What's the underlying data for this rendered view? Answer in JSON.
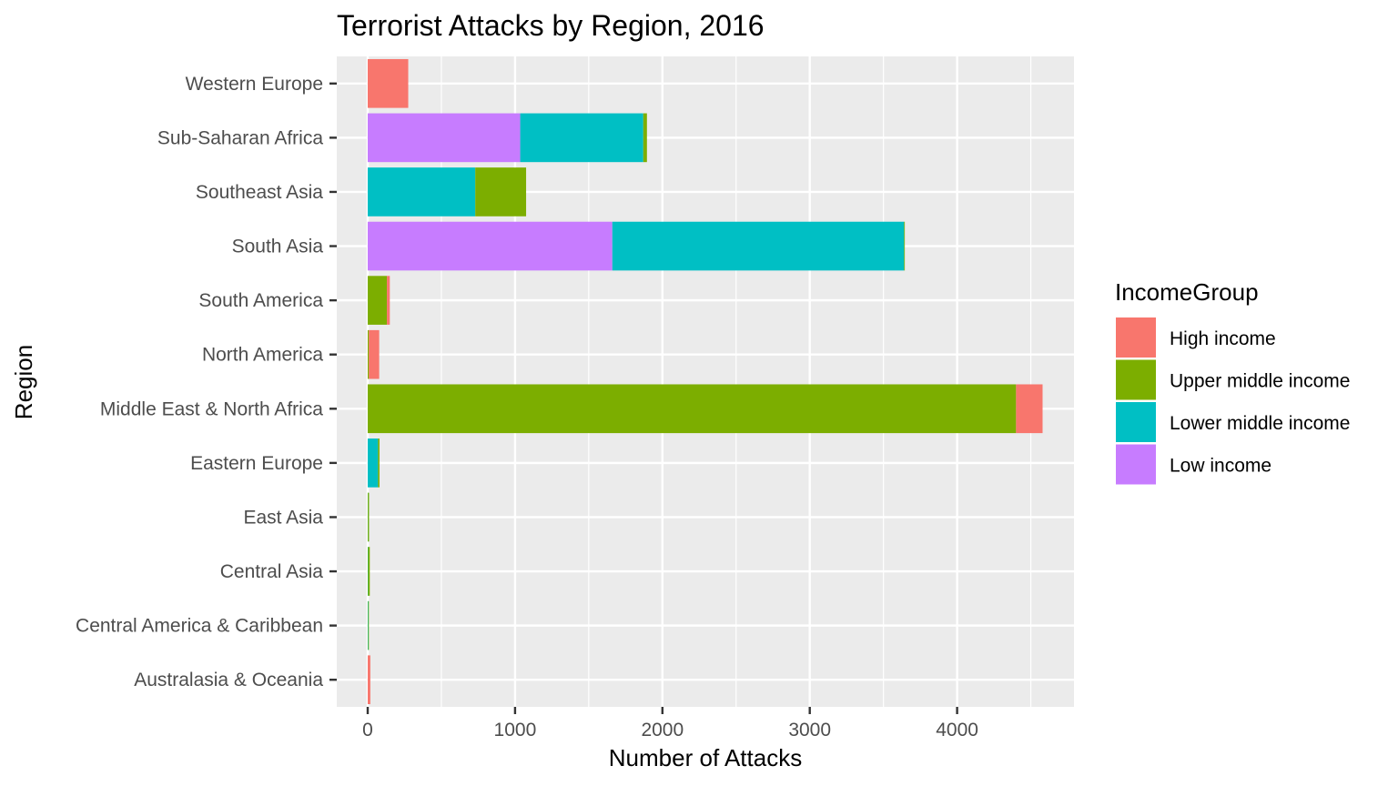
{
  "chart_data": {
    "type": "bar",
    "orientation": "horizontal",
    "stacked": true,
    "title": "Terrorist Attacks by Region, 2016",
    "xlabel": "Number of Attacks",
    "ylabel": "Region",
    "xlim": [
      -200,
      4800
    ],
    "x_ticks": [
      0,
      1000,
      2000,
      3000,
      4000
    ],
    "grid": true,
    "legend": {
      "title": "IncomeGroup",
      "position": "right"
    },
    "categories": [
      "Australasia & Oceania",
      "Central America & Caribbean",
      "Central Asia",
      "East Asia",
      "Eastern Europe",
      "Middle East & North Africa",
      "North America",
      "South America",
      "South Asia",
      "Southeast Asia",
      "Sub-Saharan Africa",
      "Western Europe"
    ],
    "series": [
      {
        "name": "Low income",
        "color": "#C77CFF",
        "values": [
          0,
          0,
          0,
          0,
          0,
          0,
          0,
          0,
          1660,
          0,
          1035,
          0
        ]
      },
      {
        "name": "Lower middle income",
        "color": "#00BFC4",
        "values": [
          0,
          3,
          2,
          1,
          70,
          0,
          0,
          0,
          1980,
          730,
          835,
          0
        ]
      },
      {
        "name": "Upper middle income",
        "color": "#7CAE00",
        "values": [
          0,
          2,
          12,
          8,
          10,
          4400,
          8,
          130,
          5,
          345,
          25,
          0
        ]
      },
      {
        "name": "High income",
        "color": "#F8766D",
        "values": [
          18,
          0,
          0,
          0,
          0,
          180,
          70,
          20,
          0,
          0,
          0,
          275
        ]
      }
    ]
  }
}
